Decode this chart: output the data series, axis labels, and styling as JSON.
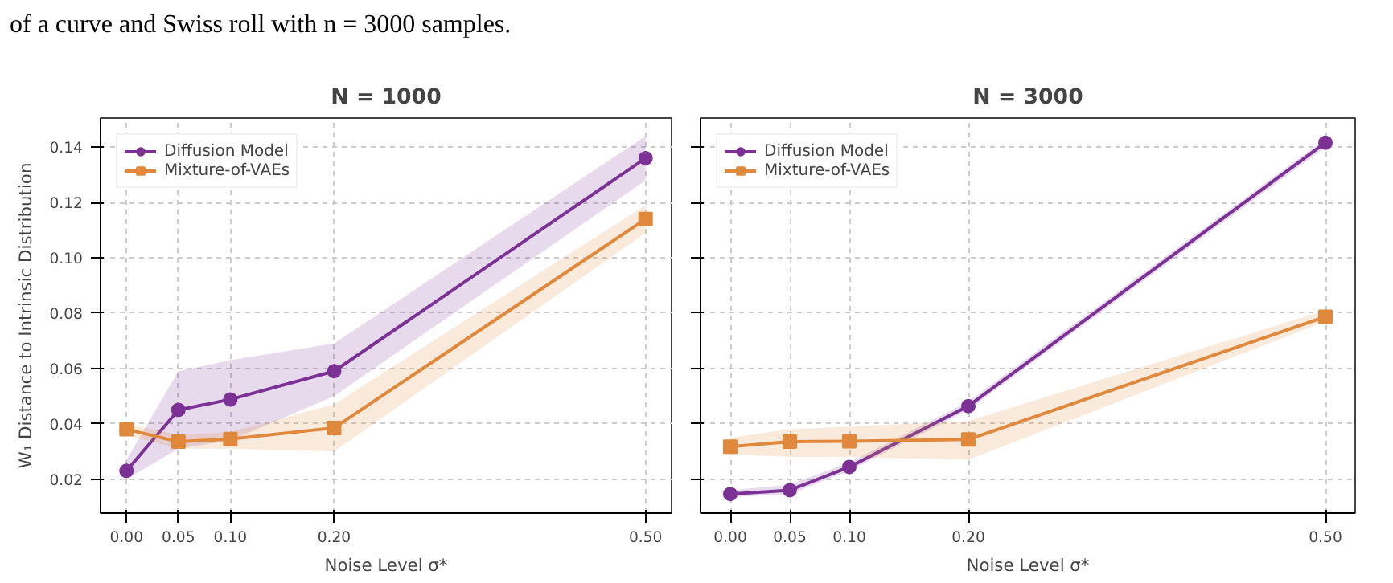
{
  "chart_data": [
    {
      "type": "line",
      "title": "N = 1000",
      "xlabel": "Noise Level σ*",
      "ylabel": "W₁ Distance to Intrinsic Distribution",
      "annotations": [
        "of a curve and Swiss roll with n = 3000 samples."
      ],
      "x": [
        0.0,
        0.05,
        0.1,
        0.2,
        0.5
      ],
      "xlim": [
        -0.025,
        0.525
      ],
      "xticks": [
        {
          "value": 0.0,
          "label": "0.00"
        },
        {
          "value": 0.05,
          "label": "0.05"
        },
        {
          "value": 0.1,
          "label": "0.10"
        },
        {
          "value": 0.2,
          "label": "0.20"
        },
        {
          "value": 0.5,
          "label": "0.50"
        }
      ],
      "ylim": [
        0.0077,
        0.1505
      ],
      "yticks": [
        {
          "value": 0.02,
          "label": "0.02"
        },
        {
          "value": 0.04,
          "label": "0.04"
        },
        {
          "value": 0.06,
          "label": "0.06"
        },
        {
          "value": 0.08,
          "label": "0.08"
        },
        {
          "value": 0.1,
          "label": "0.10"
        },
        {
          "value": 0.12,
          "label": "0.12"
        },
        {
          "value": 0.14,
          "label": "0.14"
        }
      ],
      "grid": true,
      "legend": "top left",
      "series": [
        {
          "name": "Diffusion Model",
          "color": "#7b3294",
          "marker": "circle",
          "values": [
            0.023,
            0.045,
            0.0488,
            0.059,
            0.136
          ],
          "lower": [
            0.02,
            0.031,
            0.034,
            0.05,
            0.128
          ],
          "upper": [
            0.027,
            0.059,
            0.063,
            0.069,
            0.144
          ]
        },
        {
          "name": "Mixture-of-VAEs",
          "color": "#e0883c",
          "marker": "square",
          "values": [
            0.038,
            0.0335,
            0.0345,
            0.0385,
            0.114
          ],
          "lower": [
            0.036,
            0.031,
            0.031,
            0.03,
            0.109
          ],
          "upper": [
            0.04,
            0.036,
            0.037,
            0.047,
            0.119
          ]
        }
      ]
    },
    {
      "type": "line",
      "title": "N = 3000",
      "xlabel": "Noise Level σ*",
      "x": [
        0.0,
        0.05,
        0.1,
        0.2,
        0.5
      ],
      "xlim": [
        -0.025,
        0.525
      ],
      "xticks": [
        {
          "value": 0.0,
          "label": "0.00"
        },
        {
          "value": 0.05,
          "label": "0.05"
        },
        {
          "value": 0.1,
          "label": "0.10"
        },
        {
          "value": 0.2,
          "label": "0.20"
        },
        {
          "value": 0.5,
          "label": "0.50"
        }
      ],
      "ylim": [
        0.0077,
        0.1505
      ],
      "yticks": [
        0.02,
        0.04,
        0.06,
        0.08,
        0.1,
        0.12,
        0.14
      ],
      "tick_labels": "x",
      "grid": true,
      "legend": "top left",
      "series": [
        {
          "name": "Diffusion Model",
          "color": "#7b3294",
          "marker": "circle",
          "values": [
            0.0146,
            0.016,
            0.0244,
            0.0464,
            0.1416
          ],
          "lower": [
            0.0135,
            0.0145,
            0.023,
            0.045,
            0.14
          ],
          "upper": [
            0.016,
            0.018,
            0.026,
            0.048,
            0.143
          ]
        },
        {
          "name": "Mixture-of-VAEs",
          "color": "#e0883c",
          "marker": "square",
          "values": [
            0.0317,
            0.0335,
            0.0337,
            0.0343,
            0.0787
          ],
          "lower": [
            0.029,
            0.028,
            0.028,
            0.027,
            0.077
          ],
          "upper": [
            0.035,
            0.038,
            0.039,
            0.041,
            0.081
          ]
        }
      ]
    }
  ]
}
